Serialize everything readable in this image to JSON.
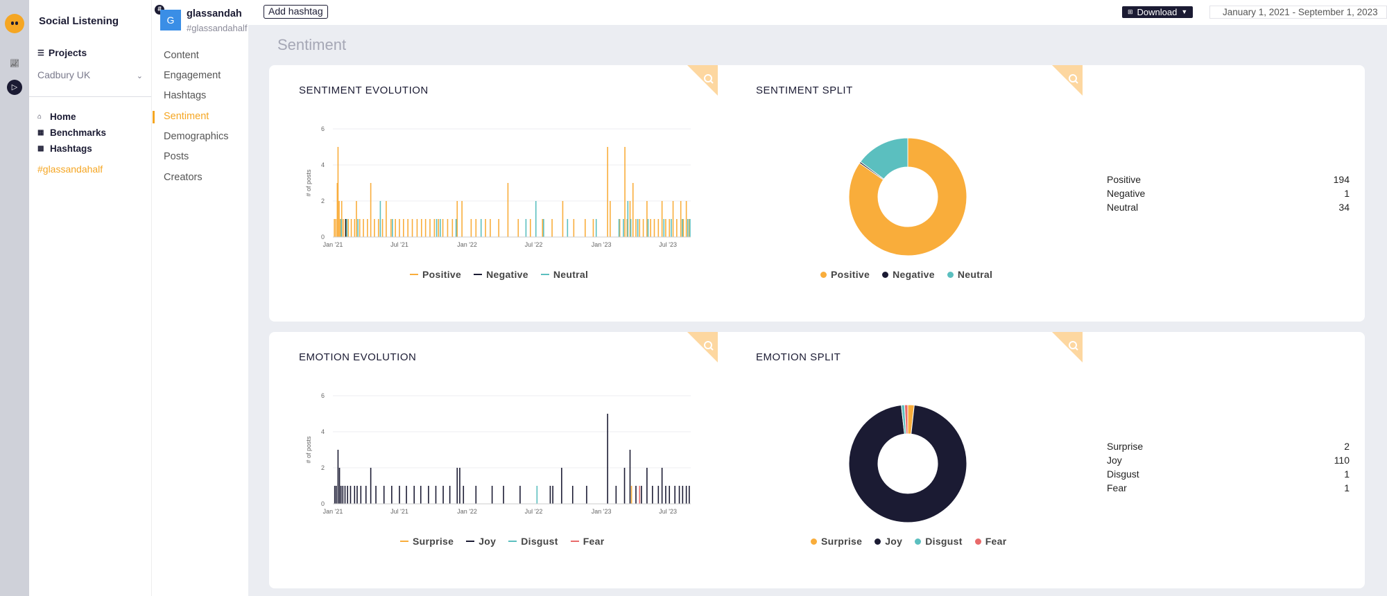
{
  "app": {
    "title": "Social Listening",
    "projects_label": "Projects",
    "project_selected": "Cadbury UK",
    "nav": [
      {
        "label": "Home",
        "icon": "home-icon"
      },
      {
        "label": "Benchmarks",
        "icon": "grid-icon"
      },
      {
        "label": "Hashtags",
        "icon": "bars-icon"
      }
    ],
    "hashtag_link": "#glassandahalf"
  },
  "profile": {
    "avatar_letter": "G",
    "name": "glassandah",
    "handle": "#glassandahalf",
    "nav": [
      "Content",
      "Engagement",
      "Hashtags",
      "Sentiment",
      "Demographics",
      "Posts",
      "Creators"
    ],
    "active": "Sentiment"
  },
  "toolbar": {
    "add_hashtag": "Add hashtag",
    "download": "Download",
    "date_range": "January 1, 2021 - September 1, 2023"
  },
  "page_title": "Sentiment",
  "colors": {
    "positive": "#f9ad3b",
    "negative": "#1b1b33",
    "neutral": "#5bbfbf",
    "fear": "#e86a6a",
    "accent": "#f5a623"
  },
  "sentiment_evolution": {
    "title": "SENTIMENT EVOLUTION",
    "legend": [
      "Positive",
      "Negative",
      "Neutral"
    ]
  },
  "sentiment_split": {
    "title": "SENTIMENT SPLIT",
    "legend": [
      "Positive",
      "Negative",
      "Neutral"
    ],
    "rows": [
      {
        "label": "Positive",
        "value": "194"
      },
      {
        "label": "Negative",
        "value": "1"
      },
      {
        "label": "Neutral",
        "value": "34"
      }
    ]
  },
  "emotion_evolution": {
    "title": "EMOTION EVOLUTION",
    "legend": [
      "Surprise",
      "Joy",
      "Disgust",
      "Fear"
    ]
  },
  "emotion_split": {
    "title": "EMOTION SPLIT",
    "legend": [
      "Surprise",
      "Joy",
      "Disgust",
      "Fear"
    ],
    "rows": [
      {
        "label": "Surprise",
        "value": "2"
      },
      {
        "label": "Joy",
        "value": "110"
      },
      {
        "label": "Disgust",
        "value": "1"
      },
      {
        "label": "Fear",
        "value": "1"
      }
    ]
  },
  "chart_data": [
    {
      "type": "bar",
      "title": "SENTIMENT EVOLUTION",
      "ylabel": "# of posts",
      "ylim": [
        0,
        6
      ],
      "yticks": [
        0,
        2,
        4,
        6
      ],
      "x_ticks": [
        "Jan '21",
        "Jul '21",
        "Jan '22",
        "Jul '22",
        "Jan '23",
        "Jul '23"
      ],
      "x_range": [
        "2021-01-01",
        "2023-09-01"
      ],
      "series": [
        {
          "name": "Positive",
          "points": [
            [
              "2021-01-05",
              1
            ],
            [
              "2021-01-09",
              1
            ],
            [
              "2021-01-13",
              3
            ],
            [
              "2021-01-15",
              5
            ],
            [
              "2021-01-18",
              2
            ],
            [
              "2021-01-21",
              1
            ],
            [
              "2021-01-25",
              2
            ],
            [
              "2021-01-29",
              1
            ],
            [
              "2021-02-04",
              1
            ],
            [
              "2021-02-12",
              1
            ],
            [
              "2021-02-20",
              1
            ],
            [
              "2021-03-01",
              1
            ],
            [
              "2021-03-06",
              2
            ],
            [
              "2021-03-15",
              1
            ],
            [
              "2021-03-25",
              1
            ],
            [
              "2021-04-05",
              1
            ],
            [
              "2021-04-14",
              3
            ],
            [
              "2021-04-24",
              1
            ],
            [
              "2021-05-05",
              1
            ],
            [
              "2021-05-16",
              1
            ],
            [
              "2021-05-26",
              2
            ],
            [
              "2021-06-08",
              1
            ],
            [
              "2021-06-20",
              1
            ],
            [
              "2021-07-01",
              1
            ],
            [
              "2021-07-12",
              1
            ],
            [
              "2021-07-24",
              1
            ],
            [
              "2021-08-05",
              1
            ],
            [
              "2021-08-18",
              1
            ],
            [
              "2021-08-30",
              1
            ],
            [
              "2021-09-10",
              1
            ],
            [
              "2021-09-22",
              1
            ],
            [
              "2021-10-04",
              1
            ],
            [
              "2021-10-15",
              1
            ],
            [
              "2021-10-27",
              1
            ],
            [
              "2021-11-09",
              1
            ],
            [
              "2021-11-22",
              1
            ],
            [
              "2021-12-05",
              2
            ],
            [
              "2021-12-18",
              2
            ],
            [
              "2022-01-12",
              1
            ],
            [
              "2022-01-25",
              1
            ],
            [
              "2022-02-20",
              1
            ],
            [
              "2022-03-05",
              1
            ],
            [
              "2022-03-28",
              1
            ],
            [
              "2022-04-22",
              3
            ],
            [
              "2022-05-20",
              1
            ],
            [
              "2022-06-22",
              1
            ],
            [
              "2022-07-25",
              1
            ],
            [
              "2022-08-20",
              1
            ],
            [
              "2022-09-18",
              2
            ],
            [
              "2022-10-18",
              1
            ],
            [
              "2022-11-18",
              1
            ],
            [
              "2022-12-10",
              1
            ],
            [
              "2023-01-18",
              5
            ],
            [
              "2023-01-25",
              2
            ],
            [
              "2023-02-20",
              1
            ],
            [
              "2023-03-06",
              5
            ],
            [
              "2023-03-12",
              1
            ],
            [
              "2023-03-20",
              2
            ],
            [
              "2023-03-28",
              3
            ],
            [
              "2023-04-05",
              1
            ],
            [
              "2023-04-15",
              1
            ],
            [
              "2023-04-25",
              1
            ],
            [
              "2023-05-05",
              2
            ],
            [
              "2023-05-15",
              1
            ],
            [
              "2023-05-25",
              1
            ],
            [
              "2023-06-05",
              1
            ],
            [
              "2023-06-15",
              2
            ],
            [
              "2023-06-25",
              1
            ],
            [
              "2023-07-05",
              1
            ],
            [
              "2023-07-15",
              2
            ],
            [
              "2023-07-25",
              1
            ],
            [
              "2023-08-05",
              2
            ],
            [
              "2023-08-12",
              1
            ],
            [
              "2023-08-20",
              2
            ],
            [
              "2023-08-28",
              1
            ]
          ]
        },
        {
          "name": "Negative",
          "points": [
            [
              "2021-02-05",
              1
            ]
          ]
        },
        {
          "name": "Neutral",
          "points": [
            [
              "2021-01-24",
              1
            ],
            [
              "2021-02-08",
              1
            ],
            [
              "2021-03-10",
              1
            ],
            [
              "2021-05-10",
              2
            ],
            [
              "2021-06-12",
              1
            ],
            [
              "2021-10-10",
              1
            ],
            [
              "2021-10-20",
              1
            ],
            [
              "2021-12-02",
              1
            ],
            [
              "2022-02-08",
              1
            ],
            [
              "2022-06-10",
              1
            ],
            [
              "2022-07-07",
              2
            ],
            [
              "2022-07-28",
              1
            ],
            [
              "2022-10-01",
              1
            ],
            [
              "2022-12-18",
              1
            ],
            [
              "2023-02-18",
              1
            ],
            [
              "2023-03-02",
              1
            ],
            [
              "2023-03-14",
              2
            ],
            [
              "2023-03-22",
              1
            ],
            [
              "2023-04-10",
              1
            ],
            [
              "2023-05-08",
              1
            ],
            [
              "2023-06-20",
              1
            ],
            [
              "2023-07-10",
              1
            ],
            [
              "2023-08-09",
              1
            ],
            [
              "2023-08-24",
              1
            ],
            [
              "2023-08-30",
              1
            ]
          ]
        }
      ]
    },
    {
      "type": "pie",
      "title": "SENTIMENT SPLIT",
      "labels": [
        "Positive",
        "Negative",
        "Neutral"
      ],
      "values": [
        194,
        1,
        34
      ]
    },
    {
      "type": "bar",
      "title": "EMOTION EVOLUTION",
      "ylabel": "# of posts",
      "ylim": [
        0,
        6
      ],
      "yticks": [
        0,
        2,
        4,
        6
      ],
      "x_ticks": [
        "Jan '21",
        "Jul '21",
        "Jan '22",
        "Jul '22",
        "Jan '23",
        "Jul '23"
      ],
      "x_range": [
        "2021-01-01",
        "2023-09-01"
      ],
      "series": [
        {
          "name": "Surprise",
          "points": [
            [
              "2023-03-24",
              1
            ]
          ]
        },
        {
          "name": "Joy",
          "points": [
            [
              "2021-01-06",
              1
            ],
            [
              "2021-01-10",
              1
            ],
            [
              "2021-01-15",
              3
            ],
            [
              "2021-01-19",
              2
            ],
            [
              "2021-01-23",
              1
            ],
            [
              "2021-01-28",
              1
            ],
            [
              "2021-02-03",
              1
            ],
            [
              "2021-02-10",
              1
            ],
            [
              "2021-02-18",
              1
            ],
            [
              "2021-03-01",
              1
            ],
            [
              "2021-03-08",
              1
            ],
            [
              "2021-03-18",
              1
            ],
            [
              "2021-04-01",
              1
            ],
            [
              "2021-04-14",
              2
            ],
            [
              "2021-04-28",
              1
            ],
            [
              "2021-05-20",
              1
            ],
            [
              "2021-06-10",
              1
            ],
            [
              "2021-07-01",
              1
            ],
            [
              "2021-07-20",
              1
            ],
            [
              "2021-08-10",
              1
            ],
            [
              "2021-08-28",
              1
            ],
            [
              "2021-09-18",
              1
            ],
            [
              "2021-10-08",
              1
            ],
            [
              "2021-10-28",
              1
            ],
            [
              "2021-11-15",
              1
            ],
            [
              "2021-12-05",
              2
            ],
            [
              "2021-12-12",
              2
            ],
            [
              "2021-12-22",
              1
            ],
            [
              "2022-01-25",
              1
            ],
            [
              "2022-03-10",
              1
            ],
            [
              "2022-04-10",
              1
            ],
            [
              "2022-05-25",
              1
            ],
            [
              "2022-08-15",
              1
            ],
            [
              "2022-08-22",
              1
            ],
            [
              "2022-09-15",
              2
            ],
            [
              "2022-10-15",
              1
            ],
            [
              "2022-11-22",
              1
            ],
            [
              "2023-01-18",
              5
            ],
            [
              "2023-02-10",
              1
            ],
            [
              "2023-03-05",
              2
            ],
            [
              "2023-03-20",
              3
            ],
            [
              "2023-04-05",
              1
            ],
            [
              "2023-04-20",
              1
            ],
            [
              "2023-05-05",
              2
            ],
            [
              "2023-05-20",
              1
            ],
            [
              "2023-06-05",
              1
            ],
            [
              "2023-06-15",
              2
            ],
            [
              "2023-06-25",
              1
            ],
            [
              "2023-07-05",
              1
            ],
            [
              "2023-07-20",
              1
            ],
            [
              "2023-08-01",
              1
            ],
            [
              "2023-08-10",
              1
            ],
            [
              "2023-08-20",
              1
            ],
            [
              "2023-08-28",
              1
            ]
          ]
        },
        {
          "name": "Disgust",
          "points": [
            [
              "2022-07-10",
              1
            ]
          ]
        },
        {
          "name": "Fear",
          "points": [
            [
              "2023-04-15",
              1
            ]
          ]
        }
      ]
    },
    {
      "type": "pie",
      "title": "EMOTION SPLIT",
      "labels": [
        "Surprise",
        "Joy",
        "Disgust",
        "Fear"
      ],
      "values": [
        2,
        110,
        1,
        1
      ]
    }
  ]
}
